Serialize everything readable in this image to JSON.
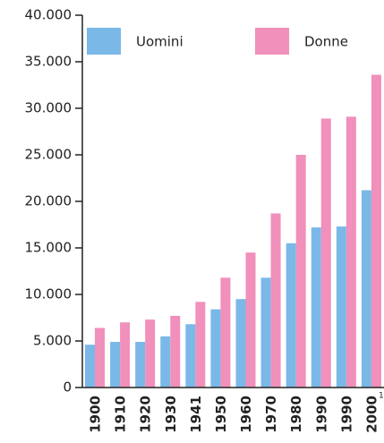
{
  "chart_data": {
    "type": "bar",
    "categories": [
      "1900",
      "1910",
      "1920",
      "1930",
      "1941",
      "1950",
      "1960",
      "1970",
      "1980",
      "1990",
      "1990",
      "2000"
    ],
    "footnote_mark": "1",
    "series": [
      {
        "name": "Uomini",
        "color": "#7ab8e8",
        "values": [
          4600,
          4900,
          4900,
          5500,
          6800,
          8400,
          9500,
          11800,
          15500,
          17200,
          17300,
          21200
        ]
      },
      {
        "name": "Donne",
        "color": "#f090bb",
        "values": [
          6400,
          7000,
          7300,
          7700,
          9200,
          11800,
          14500,
          18700,
          25000,
          28900,
          29100,
          33600
        ]
      }
    ],
    "ylim": [
      0,
      40000
    ],
    "yticks": [
      0,
      {
        "value": 5000,
        "label": "5.000"
      },
      {
        "value": 10000,
        "label": "10.000"
      },
      {
        "value": 15000,
        "label": "15.000"
      },
      {
        "value": 20000,
        "label": "20.000"
      },
      {
        "value": 25000,
        "label": "25.000"
      },
      {
        "value": 30000,
        "label": "30.000"
      },
      {
        "value": 35000,
        "label": "35.000"
      },
      {
        "value": 40000,
        "label": "40.000"
      }
    ],
    "legend": "top"
  }
}
